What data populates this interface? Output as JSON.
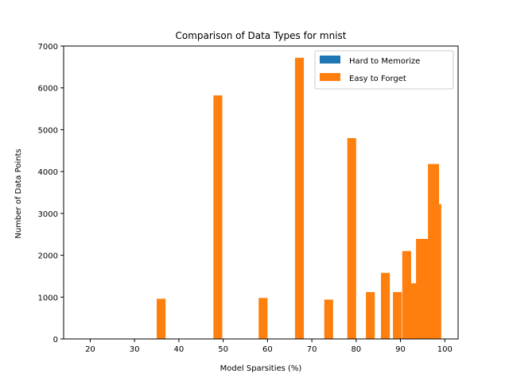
{
  "chart_data": {
    "type": "bar",
    "title": "Comparison of Data Types for mnist",
    "xlabel": "Model Sparsities (%)",
    "ylabel": "Number of Data Points",
    "xlim": [
      14,
      103
    ],
    "ylim": [
      0,
      7000
    ],
    "xticks": [
      20,
      30,
      40,
      50,
      60,
      70,
      80,
      90,
      100
    ],
    "yticks": [
      0,
      1000,
      2000,
      3000,
      4000,
      5000,
      6000,
      7000
    ],
    "bar_width": 2,
    "legend_position": "top-right",
    "x": [
      36.0,
      48.8,
      59.0,
      67.2,
      73.8,
      79.0,
      83.2,
      86.6,
      89.3,
      91.4,
      93.1,
      94.5,
      95.6,
      96.5,
      97.2,
      97.7,
      98.2
    ],
    "series": [
      {
        "name": "Hard to Memorize",
        "color": "#1f77b4",
        "values": [
          0,
          0,
          0,
          0,
          0,
          0,
          0,
          0,
          0,
          0,
          0,
          0,
          0,
          0,
          0,
          0,
          0
        ]
      },
      {
        "name": "Easy to Forget",
        "color": "#ff7f0e",
        "values": [
          960,
          5820,
          980,
          6720,
          940,
          4800,
          1120,
          1580,
          1120,
          2100,
          1330,
          2390,
          2390,
          2390,
          4180,
          4180,
          3220
        ]
      }
    ]
  }
}
